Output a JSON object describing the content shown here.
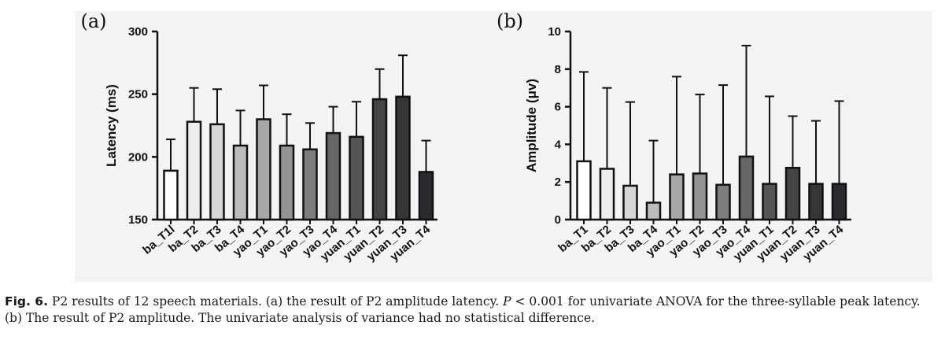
{
  "chart_data": [
    {
      "panel_label": "(a)",
      "type": "bar",
      "ylabel": "Latency (ms)",
      "ylim": [
        150,
        300
      ],
      "yticks": [
        150,
        200,
        250,
        300
      ],
      "categories": [
        "ba_T1l",
        "ba_T2",
        "ba_T3",
        "ba_T4",
        "yao_T1",
        "yao_T2",
        "yao_T3",
        "yao_T4",
        "yuan_T1",
        "yuan_T2",
        "yuan_T3",
        "yuan_T4"
      ],
      "values": [
        189,
        228,
        226,
        209,
        230,
        209,
        206,
        219,
        216,
        246,
        248,
        188
      ],
      "error_upper": [
        214,
        255,
        254,
        237,
        257,
        234,
        227,
        240,
        244,
        270,
        281,
        213
      ],
      "bar_colors": [
        "#ffffff",
        "#ececec",
        "#d6d6d6",
        "#bcbcbc",
        "#a7a7a7",
        "#939393",
        "#7d7d7d",
        "#666666",
        "#545454",
        "#444444",
        "#363636",
        "#2b2b2e"
      ],
      "grid": false
    },
    {
      "panel_label": "(b)",
      "type": "bar",
      "ylabel": "Amplitude (μv)",
      "ylim": [
        0,
        10
      ],
      "yticks": [
        0,
        2,
        4,
        6,
        8,
        10
      ],
      "categories": [
        "ba_T1",
        "ba_T2",
        "ba_T3",
        "ba_T4",
        "yao_T1",
        "yao_T2",
        "yao_T3",
        "yao_T4",
        "yuan_T1",
        "yuan_T2",
        "yuan_T3",
        "yuan_T4"
      ],
      "values": [
        3.1,
        2.7,
        1.8,
        0.9,
        2.4,
        2.45,
        1.85,
        3.35,
        1.9,
        2.75,
        1.9,
        1.9
      ],
      "error_upper": [
        7.85,
        7.0,
        6.25,
        4.2,
        7.6,
        6.65,
        7.15,
        9.25,
        6.55,
        5.5,
        5.25,
        6.3
      ],
      "bar_colors": [
        "#ffffff",
        "#ececec",
        "#d6d6d6",
        "#bcbcbc",
        "#a7a7a7",
        "#939393",
        "#7d7d7d",
        "#666666",
        "#545454",
        "#444444",
        "#363636",
        "#2b2b2e"
      ],
      "grid": false
    }
  ],
  "caption": {
    "fig_label": "Fig. 6.",
    "text_1": " P2 results of 12 speech materials. (a) the result of P2 amplitude latency. ",
    "p_symbol": "P",
    "text_2": " < 0.001 for univariate ANOVA for the three-syllable peak latency. (b) The result of P2 amplitude. The univariate analysis of variance had no statistical difference."
  }
}
